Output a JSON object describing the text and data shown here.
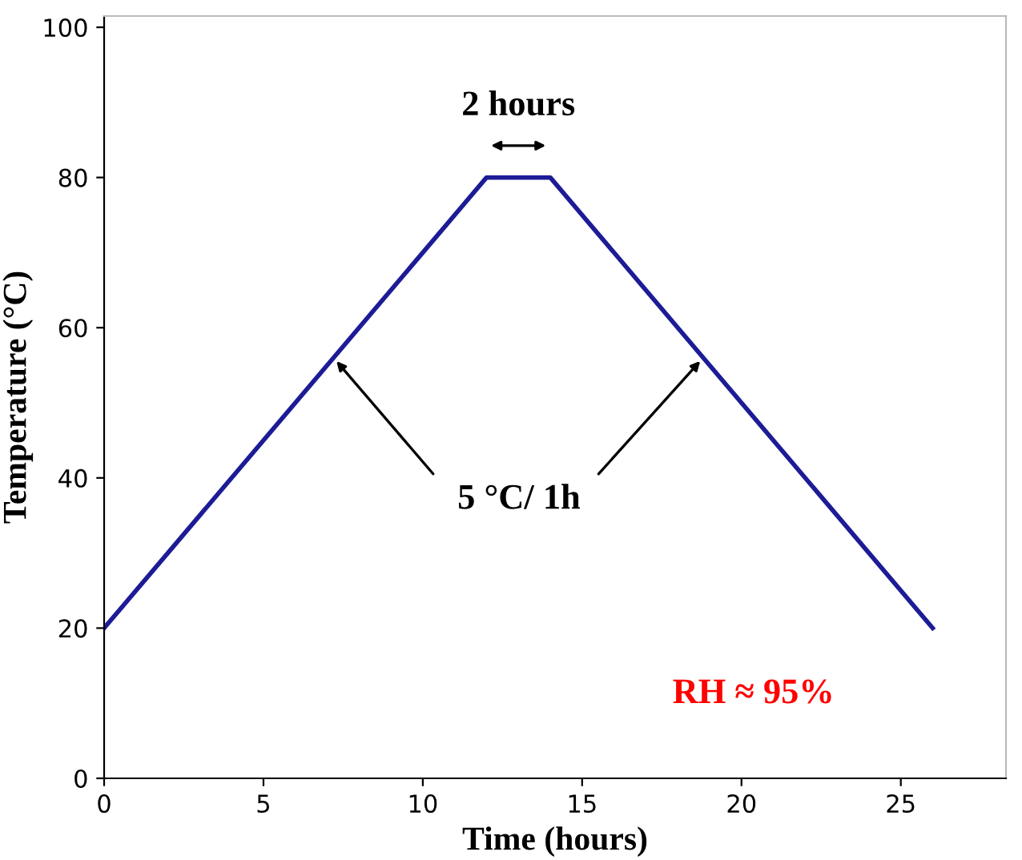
{
  "chart_data": {
    "type": "line",
    "xlabel": "Time (hours)",
    "ylabel": "Temperature (°C)",
    "x": [
      0,
      12,
      14,
      26
    ],
    "series": [
      {
        "color": "#1c1c96",
        "values": [
          20,
          80,
          80,
          20
        ]
      }
    ],
    "xlim": [
      0,
      28.3
    ],
    "ylim": [
      0,
      101.5
    ],
    "xticks": [
      0,
      5,
      10,
      15,
      20,
      25
    ],
    "yticks": [
      0,
      20,
      40,
      60,
      80,
      100
    ],
    "grid": false,
    "marker": "none",
    "line_style": "solid",
    "annotations": [
      "2 hours",
      {
        "text": "5 °C/ 1h",
        "x": 7.2,
        "y": 56
      },
      "RH ≈ 95%"
    ]
  }
}
